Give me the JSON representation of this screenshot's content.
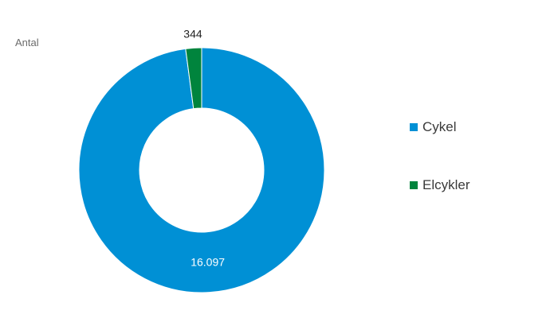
{
  "chart_data": {
    "type": "pie",
    "variant": "donut",
    "ylabel": "Antal",
    "categories": [
      "Cykel",
      "Elcykler"
    ],
    "values": [
      16097,
      344
    ],
    "value_labels": [
      "16.097",
      "344"
    ],
    "colors": [
      "#0090d5",
      "#00843d"
    ],
    "legend": "right"
  }
}
